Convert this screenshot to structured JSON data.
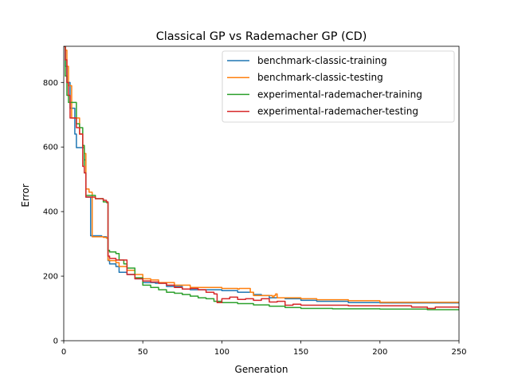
{
  "chart_data": {
    "type": "line",
    "title": "Classical GP vs Rademacher GP (CD)",
    "xlabel": "Generation",
    "ylabel": "Error",
    "xlim": [
      0,
      250
    ],
    "ylim": [
      0,
      912
    ],
    "xticks": [
      0,
      50,
      100,
      150,
      200,
      250
    ],
    "yticks": [
      0,
      200,
      400,
      600,
      800
    ],
    "grid": false,
    "legend_position": "top-right",
    "series": [
      {
        "name": "benchmark-classic-training",
        "color": "#1f77b4",
        "x": [
          0,
          1,
          2,
          4,
          7,
          8,
          12,
          13,
          14,
          17,
          24,
          27,
          28,
          29,
          33,
          35,
          40,
          45,
          50,
          58,
          65,
          75,
          80,
          95,
          100,
          110,
          120,
          125,
          130,
          140,
          150,
          160,
          180,
          200,
          250
        ],
        "y": [
          912,
          850,
          800,
          720,
          640,
          598,
          598,
          560,
          445,
          325,
          322,
          318,
          248,
          238,
          230,
          212,
          205,
          192,
          180,
          178,
          168,
          160,
          158,
          158,
          155,
          150,
          143,
          140,
          133,
          130,
          125,
          122,
          118,
          117,
          117
        ]
      },
      {
        "name": "benchmark-classic-testing",
        "color": "#ff7f0e",
        "x": [
          0,
          1,
          2,
          3,
          5,
          7,
          10,
          12,
          13,
          14,
          16,
          18,
          25,
          27,
          28,
          29,
          33,
          35,
          40,
          45,
          50,
          55,
          60,
          70,
          80,
          100,
          110,
          111,
          118,
          120,
          132,
          133,
          134,
          135,
          150,
          160,
          180,
          200,
          250
        ],
        "y": [
          912,
          900,
          850,
          790,
          690,
          690,
          640,
          600,
          580,
          470,
          460,
          322,
          320,
          318,
          250,
          248,
          242,
          230,
          218,
          205,
          192,
          188,
          180,
          172,
          165,
          162,
          160,
          162,
          150,
          140,
          135,
          140,
          145,
          133,
          130,
          127,
          124,
          119,
          119
        ]
      },
      {
        "name": "experimental-rademacher-training",
        "color": "#2ca02c",
        "x": [
          0,
          1,
          2,
          3,
          5,
          6,
          8,
          10,
          12,
          13,
          14,
          20,
          25,
          27,
          28,
          29,
          33,
          35,
          38,
          40,
          45,
          50,
          55,
          60,
          65,
          70,
          75,
          80,
          85,
          90,
          95,
          100,
          110,
          120,
          130,
          140,
          150,
          170,
          200,
          230,
          250
        ],
        "y": [
          912,
          820,
          760,
          738,
          738,
          738,
          672,
          660,
          605,
          520,
          450,
          440,
          430,
          428,
          280,
          275,
          270,
          250,
          238,
          225,
          195,
          172,
          165,
          158,
          150,
          147,
          143,
          138,
          133,
          130,
          122,
          118,
          115,
          111,
          107,
          103,
          100,
          99,
          98,
          96,
          94
        ]
      },
      {
        "name": "experimental-rademacher-testing",
        "color": "#d62728",
        "x": [
          0,
          1,
          2,
          3,
          4,
          5,
          8,
          10,
          12,
          13,
          14,
          20,
          25,
          27,
          28,
          29,
          33,
          40,
          45,
          50,
          55,
          60,
          65,
          70,
          75,
          80,
          85,
          90,
          95,
          97,
          100,
          105,
          110,
          115,
          120,
          125,
          130,
          135,
          140,
          145,
          150,
          160,
          180,
          200,
          220,
          230,
          235,
          250
        ],
        "y": [
          912,
          870,
          800,
          760,
          690,
          690,
          660,
          640,
          540,
          520,
          445,
          440,
          435,
          430,
          262,
          255,
          250,
          205,
          192,
          185,
          182,
          178,
          172,
          165,
          160,
          162,
          158,
          150,
          145,
          118,
          130,
          135,
          128,
          130,
          125,
          130,
          120,
          122,
          110,
          113,
          110,
          110,
          108,
          108,
          104,
          100,
          104,
          100
        ]
      }
    ]
  }
}
